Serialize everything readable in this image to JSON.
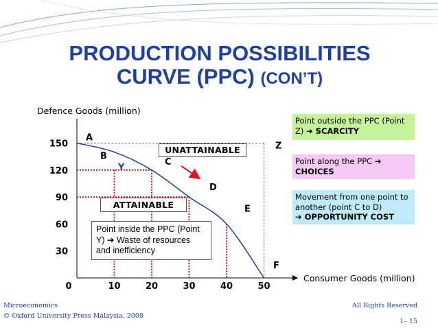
{
  "slide": {
    "title_line1": "PRODUCTION POSSIBILITIES",
    "title_line2_main": "CURVE (PPC)",
    "title_line2_suffix": "(CON’T)",
    "accent_color": "#1f3fa6"
  },
  "chart_data": {
    "type": "line",
    "ylabel": "Defence Goods (million)",
    "xlabel": "Consumer Goods (million)",
    "x_ticks": [
      "0",
      "10",
      "20",
      "30",
      "40",
      "50"
    ],
    "y_ticks": [
      "30",
      "60",
      "90",
      "120",
      "150"
    ],
    "xlim": [
      0,
      50
    ],
    "ylim": [
      0,
      150
    ],
    "curve_color": "#1f3fa6",
    "series": [
      {
        "points": [
          {
            "label": "A",
            "x": 0,
            "y": 150
          },
          {
            "label": "B",
            "x": 10,
            "y": 140
          },
          {
            "label": "C",
            "x": 20,
            "y": 120
          },
          {
            "label": "D",
            "x": 30,
            "y": 90
          },
          {
            "label": "E",
            "x": 40,
            "y": 60
          },
          {
            "label": "F",
            "x": 50,
            "y": 0
          }
        ]
      }
    ],
    "points_off_curve": [
      {
        "label": "Y",
        "x": 10,
        "y": 120
      },
      {
        "label": "Z",
        "x": 50,
        "y": 150
      }
    ],
    "regions": {
      "unattainable": "UNATTAINABLE",
      "attainable": "ATTAINABLE"
    },
    "arrow": {
      "from": "C",
      "direction": "outward",
      "color": "#e0102a"
    }
  },
  "annotations": {
    "scarcity_text": "Point outside the PPC (Point Z) ",
    "scarcity_bold": "SCARCITY",
    "choices_text": "Point along the PPC ",
    "choices_bold": "CHOICES",
    "opportunity_text": "Movement from one point to another (point C to D) ",
    "opportunity_bold": "OPPORTUNITY COST",
    "inside_text": "Point inside the PPC (Point Y) ",
    "inside_rest": " Waste of resources and inefficiency",
    "scarcity_color": "#c6f29a",
    "choices_color": "#f6c8f4",
    "opportunity_color": "#bfeaf7"
  },
  "footer": {
    "left_line1": "Microeconomics",
    "left_line2": "© Oxford University Press Malaysia, 2008",
    "right": "All Rights Reserved",
    "slide_number": "1– 15"
  }
}
